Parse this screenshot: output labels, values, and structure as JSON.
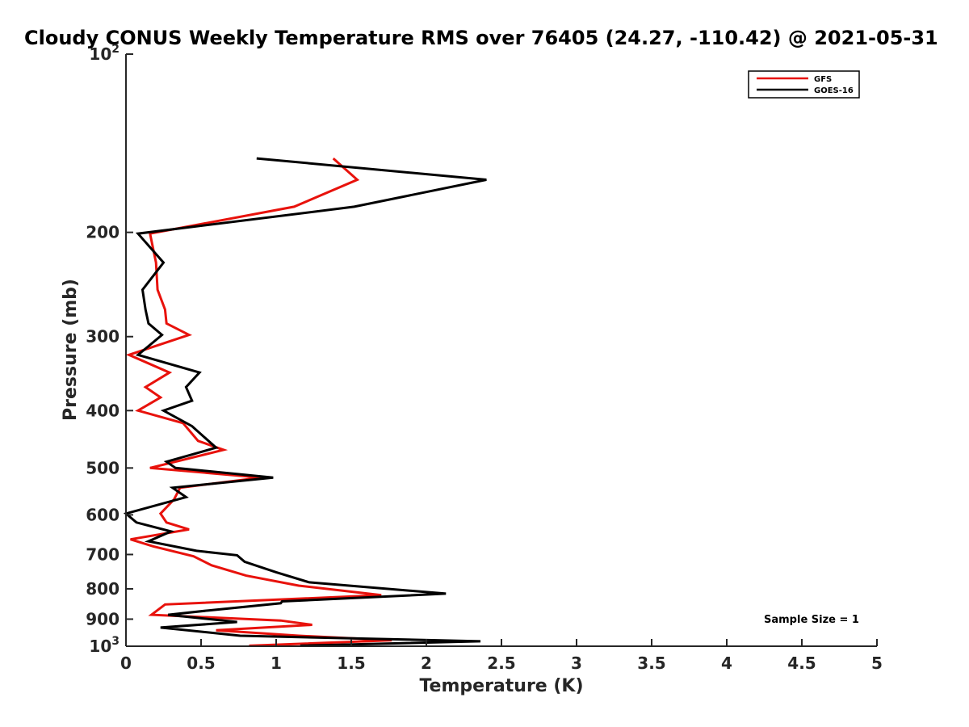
{
  "chart_data": {
    "type": "line",
    "title": "Cloudy CONUS Weekly Temperature RMS over 76405 (24.27, -110.42) @ 2021-05-31",
    "xlabel": "Temperature (K)",
    "ylabel": "Pressure (mb)",
    "xlim": [
      0,
      5
    ],
    "ylim": [
      100,
      1000
    ],
    "yscale": "log",
    "y_reversed": true,
    "x_ticks": [
      {
        "value": 0,
        "label": "0"
      },
      {
        "value": 0.5,
        "label": "0.5"
      },
      {
        "value": 1,
        "label": "1"
      },
      {
        "value": 1.5,
        "label": "1.5"
      },
      {
        "value": 2,
        "label": "2"
      },
      {
        "value": 2.5,
        "label": "2.5"
      },
      {
        "value": 3,
        "label": "3"
      },
      {
        "value": 3.5,
        "label": "3.5"
      },
      {
        "value": 4,
        "label": "4"
      },
      {
        "value": 4.5,
        "label": "4.5"
      },
      {
        "value": 5,
        "label": "5"
      }
    ],
    "y_ticks": [
      {
        "value": 100,
        "label": "10",
        "sup": "2"
      },
      {
        "value": 200,
        "label": "200"
      },
      {
        "value": 300,
        "label": "300"
      },
      {
        "value": 400,
        "label": "400"
      },
      {
        "value": 500,
        "label": "500"
      },
      {
        "value": 600,
        "label": "600"
      },
      {
        "value": 700,
        "label": "700"
      },
      {
        "value": 800,
        "label": "800"
      },
      {
        "value": 900,
        "label": "900"
      },
      {
        "value": 1000,
        "label": "10",
        "sup": "3"
      }
    ],
    "grid": false,
    "legend_position": "top-right",
    "series": [
      {
        "name": "GFS",
        "color": "#e8120c",
        "points": [
          [
            1.38,
            150
          ],
          [
            1.54,
            163
          ],
          [
            1.12,
            181
          ],
          [
            0.16,
            201
          ],
          [
            0.2,
            225
          ],
          [
            0.21,
            250
          ],
          [
            0.26,
            270
          ],
          [
            0.27,
            285
          ],
          [
            0.42,
            298
          ],
          [
            0.02,
            322
          ],
          [
            0.29,
            345
          ],
          [
            0.13,
            365
          ],
          [
            0.23,
            380
          ],
          [
            0.08,
            400
          ],
          [
            0.38,
            420
          ],
          [
            0.48,
            450
          ],
          [
            0.65,
            466
          ],
          [
            0.16,
            500
          ],
          [
            0.9,
            519
          ],
          [
            0.36,
            540
          ],
          [
            0.32,
            565
          ],
          [
            0.23,
            597
          ],
          [
            0.27,
            618
          ],
          [
            0.42,
            635
          ],
          [
            0.03,
            660
          ],
          [
            0.18,
            678
          ],
          [
            0.45,
            705
          ],
          [
            0.57,
            730
          ],
          [
            0.8,
            760
          ],
          [
            1.15,
            790
          ],
          [
            1.7,
            820
          ],
          [
            0.26,
            850
          ],
          [
            0.17,
            885
          ],
          [
            1.03,
            905
          ],
          [
            1.24,
            920
          ],
          [
            0.6,
            940
          ],
          [
            1.15,
            960
          ],
          [
            1.77,
            977
          ],
          [
            0.82,
            998
          ]
        ]
      },
      {
        "name": "GOES-16",
        "color": "#000000",
        "points": [
          [
            0.87,
            150
          ],
          [
            2.4,
            163
          ],
          [
            1.52,
            181
          ],
          [
            0.08,
            201
          ],
          [
            0.25,
            225
          ],
          [
            0.11,
            250
          ],
          [
            0.13,
            270
          ],
          [
            0.15,
            285
          ],
          [
            0.24,
            298
          ],
          [
            0.08,
            322
          ],
          [
            0.49,
            345
          ],
          [
            0.4,
            365
          ],
          [
            0.44,
            385
          ],
          [
            0.25,
            400
          ],
          [
            0.44,
            425
          ],
          [
            0.6,
            462
          ],
          [
            0.27,
            488
          ],
          [
            0.33,
            500
          ],
          [
            0.98,
            519
          ],
          [
            0.31,
            540
          ],
          [
            0.4,
            560
          ],
          [
            0.0,
            597
          ],
          [
            0.07,
            618
          ],
          [
            0.3,
            640
          ],
          [
            0.15,
            665
          ],
          [
            0.47,
            690
          ],
          [
            0.74,
            702
          ],
          [
            0.79,
            720
          ],
          [
            1.0,
            750
          ],
          [
            1.22,
            780
          ],
          [
            2.13,
            815
          ],
          [
            1.04,
            840
          ],
          [
            1.03,
            846
          ],
          [
            0.55,
            870
          ],
          [
            0.28,
            885
          ],
          [
            0.74,
            910
          ],
          [
            0.23,
            930
          ],
          [
            0.76,
            960
          ],
          [
            2.36,
            981
          ],
          [
            1.16,
            998
          ]
        ]
      }
    ],
    "annotations": [
      "Sample Size = 1"
    ]
  }
}
